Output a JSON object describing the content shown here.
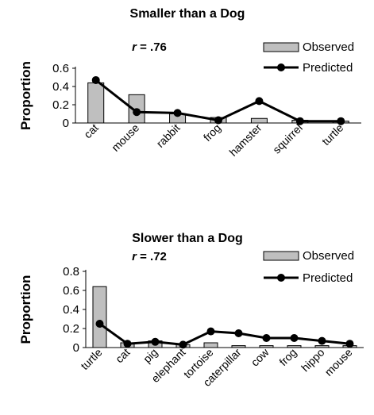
{
  "chart_data": [
    {
      "type": "bar",
      "title": "Smaller than a Dog",
      "annotation": {
        "prefix": "r",
        "value": " = .76"
      },
      "xlabel": "",
      "ylabel": "Proportion",
      "ylim": [
        0,
        0.6
      ],
      "yticks": [
        "0",
        "0.2",
        "0.4",
        "0.6"
      ],
      "categories": [
        "cat",
        "mouse",
        "rabbit",
        "frog",
        "hamster",
        "squirrel",
        "turtle"
      ],
      "series": [
        {
          "name": "Observed",
          "kind": "bar",
          "color": "#bfbfbf",
          "values": [
            0.44,
            0.31,
            0.1,
            0.06,
            0.05,
            0.03,
            0.02
          ]
        },
        {
          "name": "Predicted",
          "kind": "line",
          "color": "#000000",
          "values": [
            0.47,
            0.12,
            0.11,
            0.03,
            0.24,
            0.02,
            0.02
          ]
        }
      ],
      "legend": "top-right",
      "grid": false
    },
    {
      "type": "bar",
      "title": "Slower than a Dog",
      "annotation": {
        "prefix": "r",
        "value": " = .72"
      },
      "xlabel": "",
      "ylabel": "Proportion",
      "ylim": [
        0,
        0.8
      ],
      "yticks": [
        "0",
        "0.2",
        "0.4",
        "0.6",
        "0.8"
      ],
      "categories": [
        "turtle",
        "cat",
        "pig",
        "elephant",
        "tortoise",
        "caterpillar",
        "cow",
        "frog",
        "hippo",
        "mouse"
      ],
      "series": [
        {
          "name": "Observed",
          "kind": "bar",
          "color": "#bfbfbf",
          "values": [
            0.64,
            0.05,
            0.07,
            0.03,
            0.05,
            0.02,
            0.02,
            0.02,
            0.02,
            0.02
          ]
        },
        {
          "name": "Predicted",
          "kind": "line",
          "color": "#000000",
          "values": [
            0.25,
            0.04,
            0.06,
            0.03,
            0.17,
            0.15,
            0.1,
            0.1,
            0.07,
            0.04
          ]
        }
      ],
      "legend": "top-right",
      "grid": false
    }
  ]
}
